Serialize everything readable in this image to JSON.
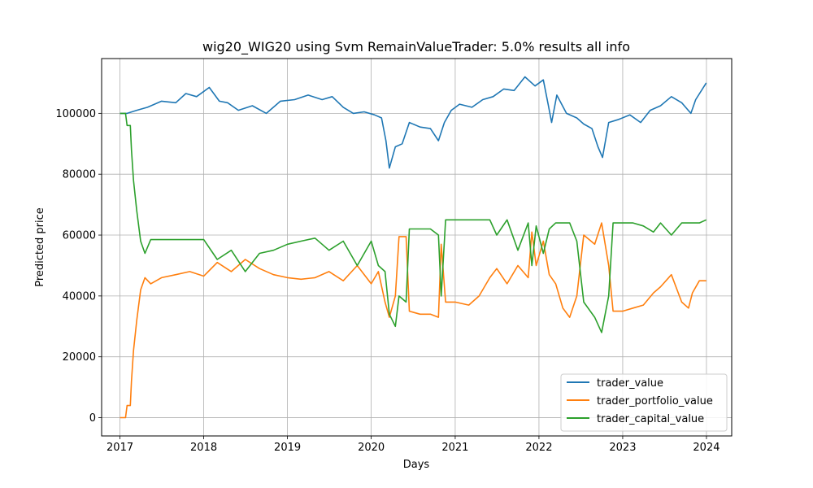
{
  "chart_data": {
    "type": "line",
    "title": "wig20_WIG20 using Svm RemainValueTrader: 5.0% results all info",
    "xlabel": "Days",
    "ylabel": "Predicted price",
    "x_ticks": [
      "2017",
      "2018",
      "2019",
      "2020",
      "2021",
      "2022",
      "2023",
      "2024"
    ],
    "y_ticks": [
      0,
      20000,
      40000,
      60000,
      80000,
      100000
    ],
    "xlim": [
      "2016-10-13",
      "2024-04-20"
    ],
    "ylim": [
      -6000,
      118000
    ],
    "grid": true,
    "legend_position": "lower-right",
    "series": [
      {
        "name": "trader_value",
        "color": "#1f77b4",
        "points": [
          [
            "2017-01-01",
            100000
          ],
          [
            "2017-02-01",
            100000
          ],
          [
            "2017-03-15",
            101000
          ],
          [
            "2017-05-01",
            102000
          ],
          [
            "2017-07-01",
            104000
          ],
          [
            "2017-09-01",
            103500
          ],
          [
            "2017-10-15",
            106500
          ],
          [
            "2017-12-01",
            105500
          ],
          [
            "2018-01-25",
            108500
          ],
          [
            "2018-03-10",
            104000
          ],
          [
            "2018-04-15",
            103500
          ],
          [
            "2018-06-01",
            101000
          ],
          [
            "2018-08-01",
            102500
          ],
          [
            "2018-10-01",
            100000
          ],
          [
            "2018-12-01",
            104000
          ],
          [
            "2019-02-01",
            104500
          ],
          [
            "2019-04-01",
            106000
          ],
          [
            "2019-06-01",
            104500
          ],
          [
            "2019-07-15",
            105500
          ],
          [
            "2019-09-01",
            102000
          ],
          [
            "2019-10-15",
            100000
          ],
          [
            "2019-12-01",
            100500
          ],
          [
            "2020-01-15",
            99500
          ],
          [
            "2020-02-15",
            98500
          ],
          [
            "2020-03-05",
            91000
          ],
          [
            "2020-03-20",
            82000
          ],
          [
            "2020-04-15",
            89000
          ],
          [
            "2020-05-15",
            90000
          ],
          [
            "2020-06-15",
            97000
          ],
          [
            "2020-08-01",
            95500
          ],
          [
            "2020-09-15",
            95000
          ],
          [
            "2020-10-20",
            91000
          ],
          [
            "2020-11-15",
            97000
          ],
          [
            "2020-12-15",
            101000
          ],
          [
            "2021-01-20",
            103000
          ],
          [
            "2021-03-15",
            102000
          ],
          [
            "2021-05-01",
            104500
          ],
          [
            "2021-06-15",
            105500
          ],
          [
            "2021-08-01",
            108000
          ],
          [
            "2021-09-15",
            107500
          ],
          [
            "2021-11-01",
            112000
          ],
          [
            "2021-12-15",
            109000
          ],
          [
            "2022-01-20",
            111000
          ],
          [
            "2022-02-10",
            103000
          ],
          [
            "2022-02-25",
            97000
          ],
          [
            "2022-03-20",
            106000
          ],
          [
            "2022-05-01",
            100000
          ],
          [
            "2022-06-15",
            98500
          ],
          [
            "2022-07-15",
            96500
          ],
          [
            "2022-08-20",
            95000
          ],
          [
            "2022-09-15",
            89000
          ],
          [
            "2022-10-05",
            85500
          ],
          [
            "2022-11-01",
            97000
          ],
          [
            "2022-12-15",
            98000
          ],
          [
            "2023-02-01",
            99500
          ],
          [
            "2023-03-20",
            97000
          ],
          [
            "2023-05-01",
            101000
          ],
          [
            "2023-06-15",
            102500
          ],
          [
            "2023-08-01",
            105500
          ],
          [
            "2023-09-15",
            103500
          ],
          [
            "2023-10-25",
            100000
          ],
          [
            "2023-11-15",
            104500
          ],
          [
            "2023-12-31",
            110000
          ]
        ]
      },
      {
        "name": "trader_portfolio_value",
        "color": "#ff7f0e",
        "points": [
          [
            "2017-01-01",
            0
          ],
          [
            "2017-01-25",
            0
          ],
          [
            "2017-02-01",
            4000
          ],
          [
            "2017-02-15",
            4000
          ],
          [
            "2017-02-20",
            12000
          ],
          [
            "2017-03-01",
            22000
          ],
          [
            "2017-03-15",
            32000
          ],
          [
            "2017-04-01",
            42000
          ],
          [
            "2017-04-20",
            46000
          ],
          [
            "2017-05-15",
            44000
          ],
          [
            "2017-07-01",
            46000
          ],
          [
            "2017-09-01",
            47000
          ],
          [
            "2017-11-01",
            48000
          ],
          [
            "2018-01-01",
            46500
          ],
          [
            "2018-03-01",
            51000
          ],
          [
            "2018-05-01",
            48000
          ],
          [
            "2018-07-01",
            52000
          ],
          [
            "2018-09-01",
            49000
          ],
          [
            "2018-11-01",
            47000
          ],
          [
            "2019-01-01",
            46000
          ],
          [
            "2019-03-01",
            45500
          ],
          [
            "2019-05-01",
            46000
          ],
          [
            "2019-07-01",
            48000
          ],
          [
            "2019-09-01",
            45000
          ],
          [
            "2019-11-01",
            50000
          ],
          [
            "2020-01-01",
            44000
          ],
          [
            "2020-02-01",
            48000
          ],
          [
            "2020-03-01",
            38000
          ],
          [
            "2020-03-20",
            33000
          ],
          [
            "2020-04-15",
            40000
          ],
          [
            "2020-05-01",
            59500
          ],
          [
            "2020-06-01",
            59500
          ],
          [
            "2020-06-15",
            35000
          ],
          [
            "2020-08-01",
            34000
          ],
          [
            "2020-09-15",
            34000
          ],
          [
            "2020-10-20",
            33000
          ],
          [
            "2020-11-01",
            57000
          ],
          [
            "2020-11-20",
            38000
          ],
          [
            "2021-01-01",
            38000
          ],
          [
            "2021-03-01",
            37000
          ],
          [
            "2021-04-15",
            40000
          ],
          [
            "2021-06-01",
            46000
          ],
          [
            "2021-07-01",
            49000
          ],
          [
            "2021-08-15",
            44000
          ],
          [
            "2021-10-01",
            50000
          ],
          [
            "2021-11-15",
            46000
          ],
          [
            "2021-12-01",
            61000
          ],
          [
            "2021-12-20",
            50000
          ],
          [
            "2022-01-20",
            58000
          ],
          [
            "2022-02-15",
            47000
          ],
          [
            "2022-03-15",
            44000
          ],
          [
            "2022-04-15",
            36000
          ],
          [
            "2022-05-15",
            33000
          ],
          [
            "2022-06-15",
            40000
          ],
          [
            "2022-07-15",
            60000
          ],
          [
            "2022-09-01",
            57000
          ],
          [
            "2022-10-01",
            64000
          ],
          [
            "2022-11-01",
            50000
          ],
          [
            "2022-11-20",
            35000
          ],
          [
            "2023-01-01",
            35000
          ],
          [
            "2023-02-15",
            36000
          ],
          [
            "2023-04-01",
            37000
          ],
          [
            "2023-05-15",
            41000
          ],
          [
            "2023-06-15",
            43000
          ],
          [
            "2023-08-01",
            47000
          ],
          [
            "2023-09-15",
            38000
          ],
          [
            "2023-10-15",
            36000
          ],
          [
            "2023-11-01",
            41000
          ],
          [
            "2023-12-01",
            45000
          ],
          [
            "2023-12-31",
            45000
          ]
        ]
      },
      {
        "name": "trader_capital_value",
        "color": "#2ca02c",
        "points": [
          [
            "2017-01-01",
            100000
          ],
          [
            "2017-01-25",
            100000
          ],
          [
            "2017-02-01",
            96000
          ],
          [
            "2017-02-15",
            96000
          ],
          [
            "2017-02-20",
            88000
          ],
          [
            "2017-03-01",
            78000
          ],
          [
            "2017-03-15",
            68000
          ],
          [
            "2017-04-01",
            58000
          ],
          [
            "2017-04-20",
            54000
          ],
          [
            "2017-05-15",
            58500
          ],
          [
            "2017-07-01",
            58500
          ],
          [
            "2017-09-01",
            58500
          ],
          [
            "2017-11-01",
            58500
          ],
          [
            "2018-01-01",
            58500
          ],
          [
            "2018-03-01",
            52000
          ],
          [
            "2018-05-01",
            55000
          ],
          [
            "2018-07-01",
            48000
          ],
          [
            "2018-09-01",
            54000
          ],
          [
            "2018-11-01",
            55000
          ],
          [
            "2019-01-01",
            57000
          ],
          [
            "2019-03-01",
            58000
          ],
          [
            "2019-05-01",
            59000
          ],
          [
            "2019-07-01",
            55000
          ],
          [
            "2019-09-01",
            58000
          ],
          [
            "2019-11-01",
            50000
          ],
          [
            "2020-01-01",
            58000
          ],
          [
            "2020-02-01",
            50000
          ],
          [
            "2020-03-01",
            48000
          ],
          [
            "2020-03-20",
            34000
          ],
          [
            "2020-04-15",
            30000
          ],
          [
            "2020-05-01",
            40000
          ],
          [
            "2020-06-01",
            38000
          ],
          [
            "2020-06-15",
            62000
          ],
          [
            "2020-08-01",
            62000
          ],
          [
            "2020-09-15",
            62000
          ],
          [
            "2020-10-20",
            60000
          ],
          [
            "2020-11-01",
            40000
          ],
          [
            "2020-11-20",
            65000
          ],
          [
            "2021-01-01",
            65000
          ],
          [
            "2021-03-01",
            65000
          ],
          [
            "2021-04-15",
            65000
          ],
          [
            "2021-06-01",
            65000
          ],
          [
            "2021-07-01",
            60000
          ],
          [
            "2021-08-15",
            65000
          ],
          [
            "2021-10-01",
            55000
          ],
          [
            "2021-11-15",
            64000
          ],
          [
            "2021-12-01",
            50000
          ],
          [
            "2021-12-20",
            63000
          ],
          [
            "2022-01-20",
            54000
          ],
          [
            "2022-02-15",
            62000
          ],
          [
            "2022-03-15",
            64000
          ],
          [
            "2022-04-15",
            64000
          ],
          [
            "2022-05-15",
            64000
          ],
          [
            "2022-06-15",
            58000
          ],
          [
            "2022-07-15",
            38000
          ],
          [
            "2022-09-01",
            33000
          ],
          [
            "2022-10-01",
            28000
          ],
          [
            "2022-11-01",
            40000
          ],
          [
            "2022-11-20",
            64000
          ],
          [
            "2023-01-01",
            64000
          ],
          [
            "2023-02-15",
            64000
          ],
          [
            "2023-04-01",
            63000
          ],
          [
            "2023-05-15",
            61000
          ],
          [
            "2023-06-15",
            64000
          ],
          [
            "2023-08-01",
            60000
          ],
          [
            "2023-09-15",
            64000
          ],
          [
            "2023-10-15",
            64000
          ],
          [
            "2023-11-01",
            64000
          ],
          [
            "2023-12-01",
            64000
          ],
          [
            "2023-12-31",
            65000
          ]
        ]
      }
    ]
  }
}
